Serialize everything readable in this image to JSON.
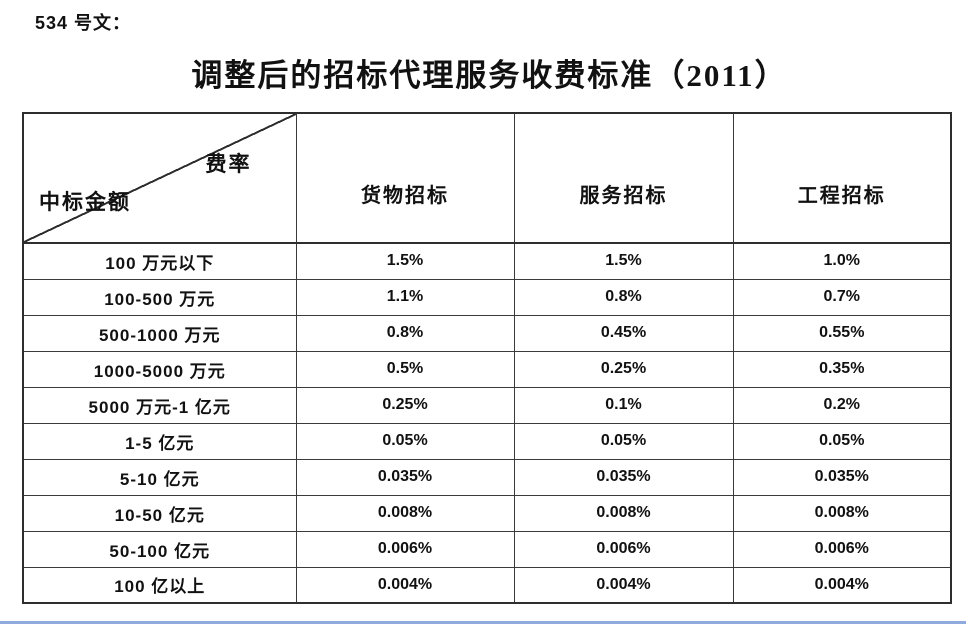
{
  "page": {
    "doc_label": "534 号文：",
    "title": "调整后的招标代理服务收费标准（2011）"
  },
  "table": {
    "corner": {
      "top_right": "费率",
      "bottom_left": "中标金额"
    },
    "columns": [
      "货物招标",
      "服务招标",
      "工程招标"
    ],
    "rows": [
      {
        "label": "100 万元以下",
        "values": [
          "1.5%",
          "1.5%",
          "1.0%"
        ]
      },
      {
        "label": "100-500 万元",
        "values": [
          "1.1%",
          "0.8%",
          "0.7%"
        ]
      },
      {
        "label": "500-1000 万元",
        "values": [
          "0.8%",
          "0.45%",
          "0.55%"
        ]
      },
      {
        "label": "1000-5000 万元",
        "values": [
          "0.5%",
          "0.25%",
          "0.35%"
        ]
      },
      {
        "label": "5000 万元-1 亿元",
        "values": [
          "0.25%",
          "0.1%",
          "0.2%"
        ]
      },
      {
        "label": "1-5 亿元",
        "values": [
          "0.05%",
          "0.05%",
          "0.05%"
        ]
      },
      {
        "label": "5-10 亿元",
        "values": [
          "0.035%",
          "0.035%",
          "0.035%"
        ]
      },
      {
        "label": "10-50 亿元",
        "values": [
          "0.008%",
          "0.008%",
          "0.008%"
        ]
      },
      {
        "label": "50-100 亿元",
        "values": [
          "0.006%",
          "0.006%",
          "0.006%"
        ]
      },
      {
        "label": "100 亿以上",
        "values": [
          "0.004%",
          "0.004%",
          "0.004%"
        ]
      }
    ]
  },
  "colors": {
    "text": "#111111",
    "border": "#2e2e2e",
    "bottom_rule": "#8faadc"
  }
}
